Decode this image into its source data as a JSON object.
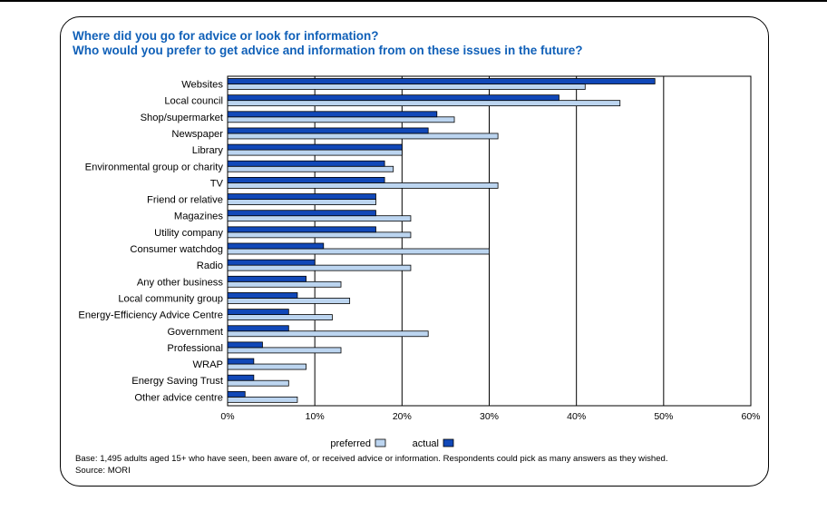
{
  "title_line1": "Where did you go for advice or look for information?",
  "title_line2": "Who would you prefer to get advice and information from on these issues in the future?",
  "footnote_base": "Base: 1,495 adults aged 15+ who have seen, been aware of, or received advice or information. Respondents could pick as many answers as they wished.",
  "footnote_source": "Source: MORI",
  "colors": {
    "preferred": "#bcd5f0",
    "actual": "#1148b8",
    "title": "#1060b8"
  },
  "chart_data": {
    "type": "bar",
    "orientation": "horizontal",
    "title": "Where did you go for advice or look for information? Who would you prefer to get advice and information from on these issues in the future?",
    "categories": [
      "Websites",
      "Local council",
      "Shop/supermarket",
      "Newspaper",
      "Library",
      "Environmental group or charity",
      "TV",
      "Friend or relative",
      "Magazines",
      "Utility company",
      "Consumer watchdog",
      "Radio",
      "Any other business",
      "Local community group",
      "Energy-Efficiency Advice Centre",
      "Government",
      "Professional",
      "WRAP",
      "Energy Saving Trust",
      "Other advice centre"
    ],
    "series": [
      {
        "name": "actual",
        "values": [
          49,
          38,
          24,
          23,
          20,
          18,
          18,
          17,
          17,
          17,
          11,
          10,
          9,
          8,
          7,
          7,
          4,
          3,
          3,
          2
        ]
      },
      {
        "name": "preferred",
        "values": [
          41,
          45,
          26,
          31,
          20,
          19,
          31,
          17,
          21,
          21,
          30,
          21,
          13,
          14,
          12,
          23,
          13,
          9,
          7,
          8
        ]
      }
    ],
    "xlim": [
      0,
      60
    ],
    "xticks": [
      "0%",
      "10%",
      "20%",
      "30%",
      "40%",
      "50%",
      "60%"
    ],
    "legend": [
      "preferred",
      "actual"
    ],
    "legend_position": "bottom-center",
    "grid": true
  }
}
